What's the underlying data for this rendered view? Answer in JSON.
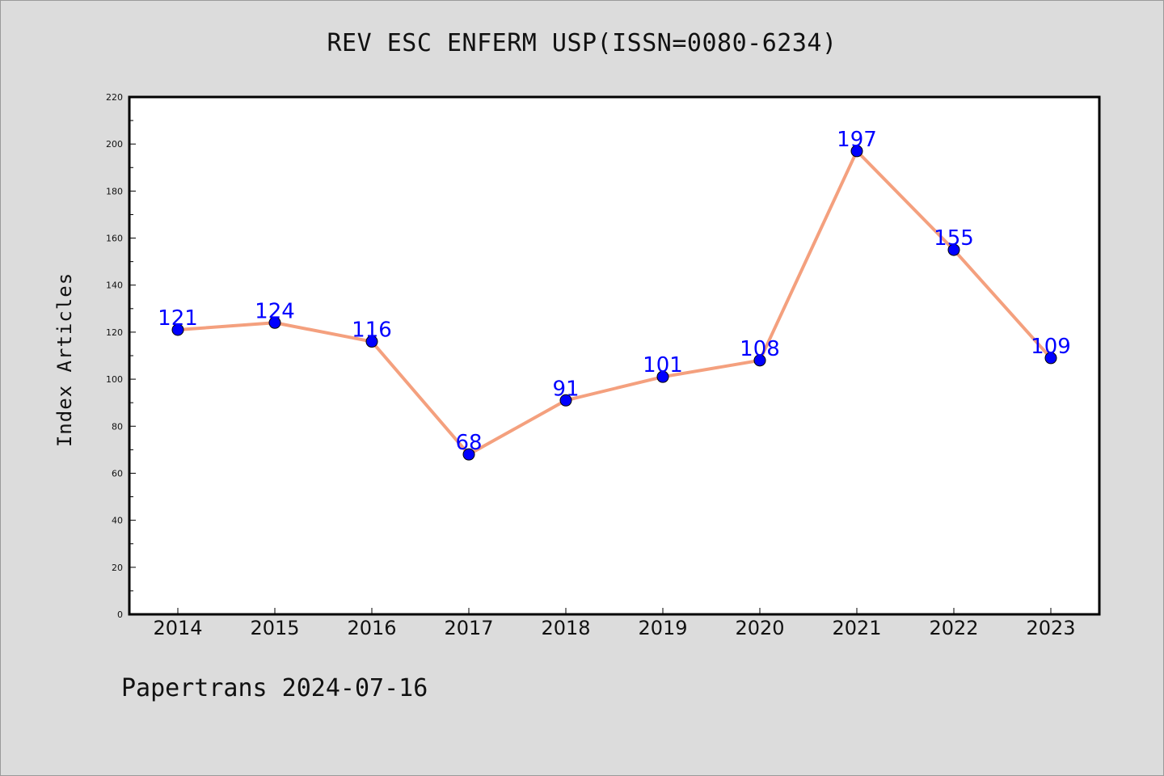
{
  "chart_data": {
    "type": "line",
    "title": "REV ESC ENFERM USP(ISSN=0080-6234)",
    "xlabel": "",
    "ylabel": "Index Articles",
    "x": [
      "2014",
      "2015",
      "2016",
      "2017",
      "2018",
      "2019",
      "2020",
      "2021",
      "2022",
      "2023"
    ],
    "series": [
      {
        "values": [
          121,
          124,
          116,
          68,
          91,
          101,
          108,
          197,
          155,
          109
        ]
      }
    ],
    "ylim": [
      0,
      220
    ],
    "yticks": [
      0,
      20,
      40,
      60,
      80,
      100,
      120,
      140,
      160,
      180,
      200,
      220
    ],
    "grid": false,
    "line_color": "#f4a07e",
    "marker_color": "#0000ff",
    "label_color": "#0000ff",
    "background": "#dcdcdc",
    "plot_background": "#ffffff"
  },
  "footer": {
    "text": "Papertrans 2024-07-16"
  }
}
